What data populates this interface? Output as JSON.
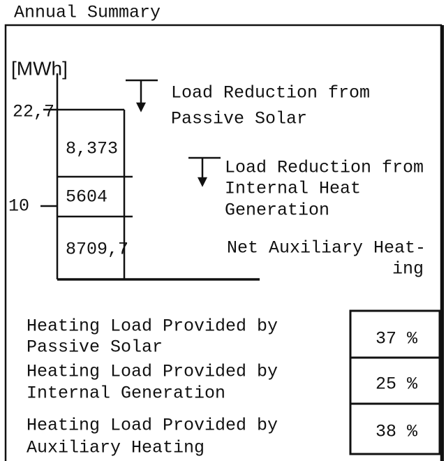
{
  "title": "Annual Summary",
  "chart": {
    "unit": "[MWh]",
    "axis_labels": [
      "22,7",
      "10"
    ],
    "segments": [
      "8,373",
      "5604",
      "8709,7"
    ],
    "legend": [
      {
        "lines": [
          "Load Reduction from",
          "Passive Solar"
        ]
      },
      {
        "lines": [
          "Load Reduction from",
          "Internal Heat",
          "Generation"
        ]
      },
      {
        "lines": [
          "Net Auxiliary Heat-",
          "ing"
        ]
      }
    ]
  },
  "shares": [
    {
      "lines": [
        "Heating Load Provided by",
        "Passive Solar"
      ],
      "value": "37 %"
    },
    {
      "lines": [
        "Heating Load Provided by",
        "Internal Generation"
      ],
      "value": "25 %"
    },
    {
      "lines": [
        "Heating Load Provided by",
        "Auxiliary Heating"
      ],
      "value": "38 %"
    }
  ]
}
